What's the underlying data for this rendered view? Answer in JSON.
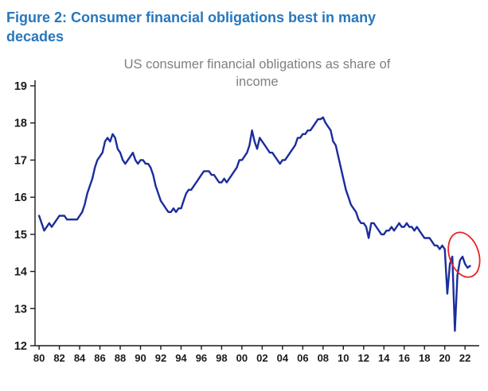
{
  "figure": {
    "title": "Figure 2: Consumer financial obligations best in many decades",
    "title_lines": [
      "Figure 2: Consumer financial obligations best in many",
      "decades"
    ]
  },
  "colors": {
    "figure_title": "#2777bd",
    "line": "#1b2d9c",
    "chart_title": "#7f7f7f",
    "axis": "#1a1a1a",
    "annotation": "#eb2227"
  },
  "chart_data": {
    "type": "line",
    "title": "US consumer financial obligations as share of income",
    "title_lines": [
      "US consumer financial obligations as share of",
      "income"
    ],
    "xlabel": "",
    "ylabel": "",
    "ylim": [
      12,
      19
    ],
    "yticks": [
      12,
      13,
      14,
      15,
      16,
      17,
      18,
      19
    ],
    "xtick_labels": [
      "80",
      "82",
      "84",
      "86",
      "88",
      "90",
      "92",
      "94",
      "96",
      "98",
      "00",
      "02",
      "04",
      "06",
      "08",
      "10",
      "12",
      "14",
      "16",
      "18",
      "20",
      "22"
    ],
    "xtick_years": [
      1980,
      1982,
      1984,
      1986,
      1988,
      1990,
      1992,
      1994,
      1996,
      1998,
      2000,
      2002,
      2004,
      2006,
      2008,
      2010,
      2012,
      2014,
      2016,
      2018,
      2020,
      2022
    ],
    "grid": false,
    "legend": "none",
    "x_start": 1980,
    "x_step": 0.25,
    "values": [
      15.5,
      15.3,
      15.1,
      15.2,
      15.3,
      15.2,
      15.3,
      15.4,
      15.5,
      15.5,
      15.5,
      15.4,
      15.4,
      15.4,
      15.4,
      15.4,
      15.5,
      15.6,
      15.8,
      16.1,
      16.3,
      16.5,
      16.8,
      17.0,
      17.1,
      17.2,
      17.5,
      17.6,
      17.5,
      17.7,
      17.6,
      17.3,
      17.2,
      17.0,
      16.9,
      17.0,
      17.1,
      17.2,
      17.0,
      16.9,
      17.0,
      17.0,
      16.9,
      16.9,
      16.8,
      16.6,
      16.3,
      16.1,
      15.9,
      15.8,
      15.7,
      15.6,
      15.6,
      15.7,
      15.6,
      15.7,
      15.7,
      15.9,
      16.1,
      16.2,
      16.2,
      16.3,
      16.4,
      16.5,
      16.6,
      16.7,
      16.7,
      16.7,
      16.6,
      16.6,
      16.5,
      16.4,
      16.4,
      16.5,
      16.4,
      16.5,
      16.6,
      16.7,
      16.8,
      17.0,
      17.0,
      17.1,
      17.2,
      17.4,
      17.8,
      17.5,
      17.3,
      17.6,
      17.5,
      17.4,
      17.3,
      17.2,
      17.2,
      17.1,
      17.0,
      16.9,
      17.0,
      17.0,
      17.1,
      17.2,
      17.3,
      17.4,
      17.6,
      17.6,
      17.7,
      17.7,
      17.8,
      17.8,
      17.9,
      18.0,
      18.1,
      18.1,
      18.15,
      18.0,
      17.9,
      17.8,
      17.5,
      17.4,
      17.1,
      16.8,
      16.5,
      16.2,
      16.0,
      15.8,
      15.7,
      15.6,
      15.4,
      15.3,
      15.3,
      15.2,
      14.9,
      15.3,
      15.3,
      15.2,
      15.1,
      15.0,
      15.0,
      15.1,
      15.1,
      15.2,
      15.1,
      15.2,
      15.3,
      15.2,
      15.2,
      15.3,
      15.2,
      15.2,
      15.1,
      15.2,
      15.1,
      15.0,
      14.9,
      14.9,
      14.9,
      14.8,
      14.7,
      14.7,
      14.6,
      14.7,
      14.6,
      13.4,
      14.2,
      14.4,
      12.4,
      13.9,
      14.3,
      14.4,
      14.2,
      14.1,
      14.15
    ],
    "annotation": {
      "shape": "ellipse",
      "center_year": 2021.9,
      "center_value": 14.45,
      "rx_years": 1.45,
      "ry_values": 0.62,
      "rotation_deg": -18
    }
  }
}
